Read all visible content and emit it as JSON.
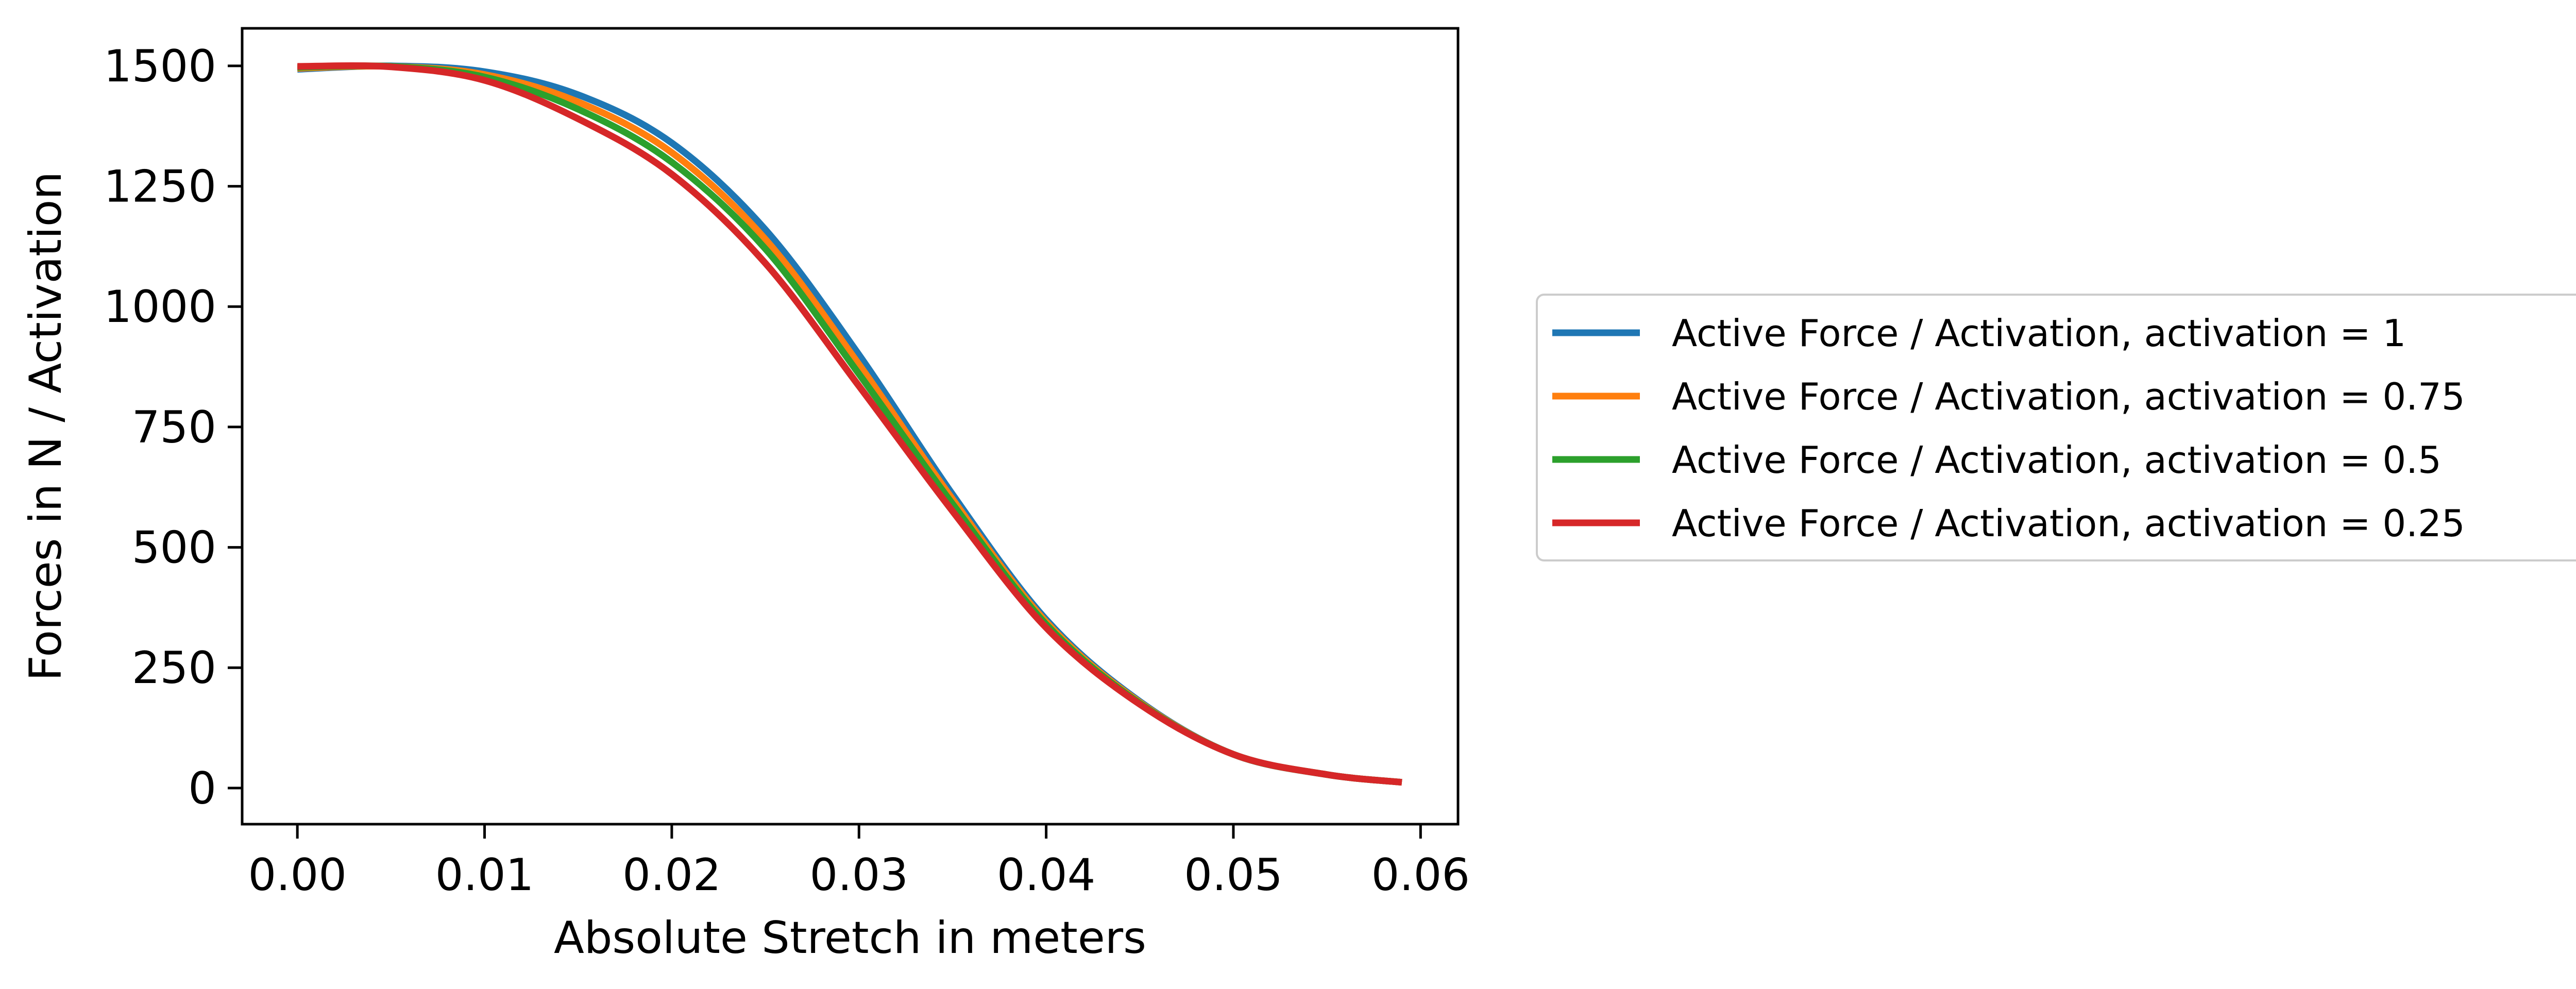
{
  "chart_data": {
    "type": "line",
    "title": "",
    "xlabel": "Absolute Stretch in meters",
    "ylabel": "Forces in N / Activation",
    "xlim": [
      -0.00295,
      0.062
    ],
    "ylim": [
      -75,
      1578
    ],
    "xticks": [
      0.0,
      0.01,
      0.02,
      0.03,
      0.04,
      0.05,
      0.06
    ],
    "xtick_labels": [
      "0.00",
      "0.01",
      "0.02",
      "0.03",
      "0.04",
      "0.05",
      "0.06"
    ],
    "yticks": [
      0,
      250,
      500,
      750,
      1000,
      1250,
      1500
    ],
    "ytick_labels": [
      "0",
      "250",
      "500",
      "750",
      "1000",
      "1250",
      "1500"
    ],
    "grid": false,
    "legend_position": "outside-right",
    "x": [
      0.0,
      0.005,
      0.01,
      0.015,
      0.02,
      0.025,
      0.03,
      0.035,
      0.04,
      0.045,
      0.05,
      0.055,
      0.059
    ],
    "series": [
      {
        "name": "Active Force / Activation, activation = 1",
        "color": "#1f77b4",
        "values": [
          1493,
          1500,
          1488,
          1440,
          1340,
          1160,
          900,
          610,
          350,
          180,
          70,
          28,
          12
        ]
      },
      {
        "name": "Active Force / Activation, activation = 0.75",
        "color": "#ff7f0e",
        "values": [
          1495,
          1499,
          1482,
          1425,
          1320,
          1140,
          880,
          600,
          345,
          178,
          70,
          28,
          12
        ]
      },
      {
        "name": "Active Force / Activation, activation = 0.5",
        "color": "#2ca02c",
        "values": [
          1497,
          1499,
          1477,
          1410,
          1300,
          1120,
          860,
          590,
          340,
          176,
          70,
          28,
          12
        ]
      },
      {
        "name": "Active Force / Activation, activation = 0.25",
        "color": "#d62728",
        "values": [
          1499,
          1498,
          1470,
          1390,
          1275,
          1090,
          835,
          575,
          333,
          174,
          70,
          28,
          12
        ]
      }
    ]
  }
}
